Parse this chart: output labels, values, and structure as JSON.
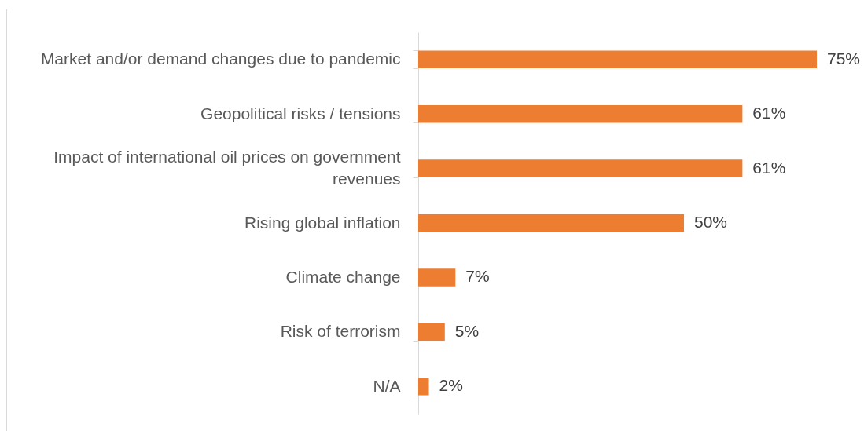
{
  "chart_data": {
    "type": "bar",
    "orientation": "horizontal",
    "categories": [
      "Market and/or demand changes due to pandemic",
      "Geopolitical risks / tensions",
      "Impact of international oil prices on government revenues",
      "Rising global inflation",
      "Climate change",
      "Risk of terrorism",
      "N/A"
    ],
    "values": [
      75,
      61,
      61,
      50,
      7,
      5,
      2
    ],
    "value_labels": [
      "75%",
      "61%",
      "61%",
      "50%",
      "7%",
      "5%",
      "2%"
    ],
    "color": "#ed7d31"
  }
}
